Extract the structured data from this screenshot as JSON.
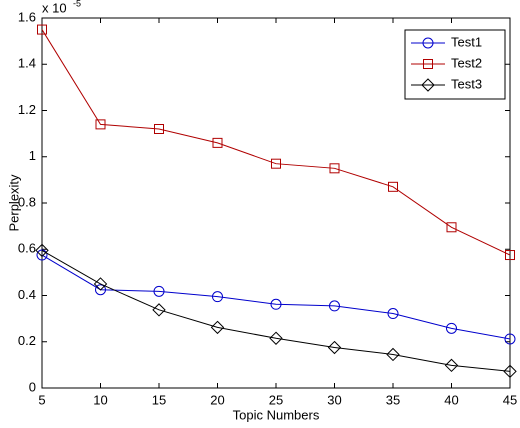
{
  "chart_data": {
    "type": "line",
    "x_label": "Topic Numbers",
    "y_label": "Perplexity",
    "y_multiplier": {
      "base": "x 10",
      "exponent": "-5"
    },
    "x": [
      5,
      10,
      15,
      20,
      25,
      30,
      35,
      40,
      45
    ],
    "series": [
      {
        "name": "Test1",
        "color": "#0000cc",
        "marker": "circle",
        "values": [
          0.575,
          0.425,
          0.418,
          0.395,
          0.362,
          0.355,
          0.322,
          0.258,
          0.212
        ]
      },
      {
        "name": "Test2",
        "color": "#b00000",
        "marker": "square",
        "values": [
          1.55,
          1.14,
          1.12,
          1.06,
          0.97,
          0.95,
          0.87,
          0.695,
          0.575
        ]
      },
      {
        "name": "Test3",
        "color": "#000000",
        "marker": "diamond",
        "values": [
          0.595,
          0.45,
          0.338,
          0.262,
          0.215,
          0.175,
          0.145,
          0.098,
          0.072
        ]
      }
    ],
    "xlim": [
      5,
      45
    ],
    "xticks": [
      5,
      10,
      15,
      20,
      25,
      30,
      35,
      40,
      45
    ],
    "ylim": [
      0,
      1.6
    ],
    "yticks": [
      0,
      0.2,
      0.4,
      0.6,
      0.8,
      1,
      1.2,
      1.4,
      1.6
    ],
    "grid": false,
    "legend": "top-right"
  }
}
